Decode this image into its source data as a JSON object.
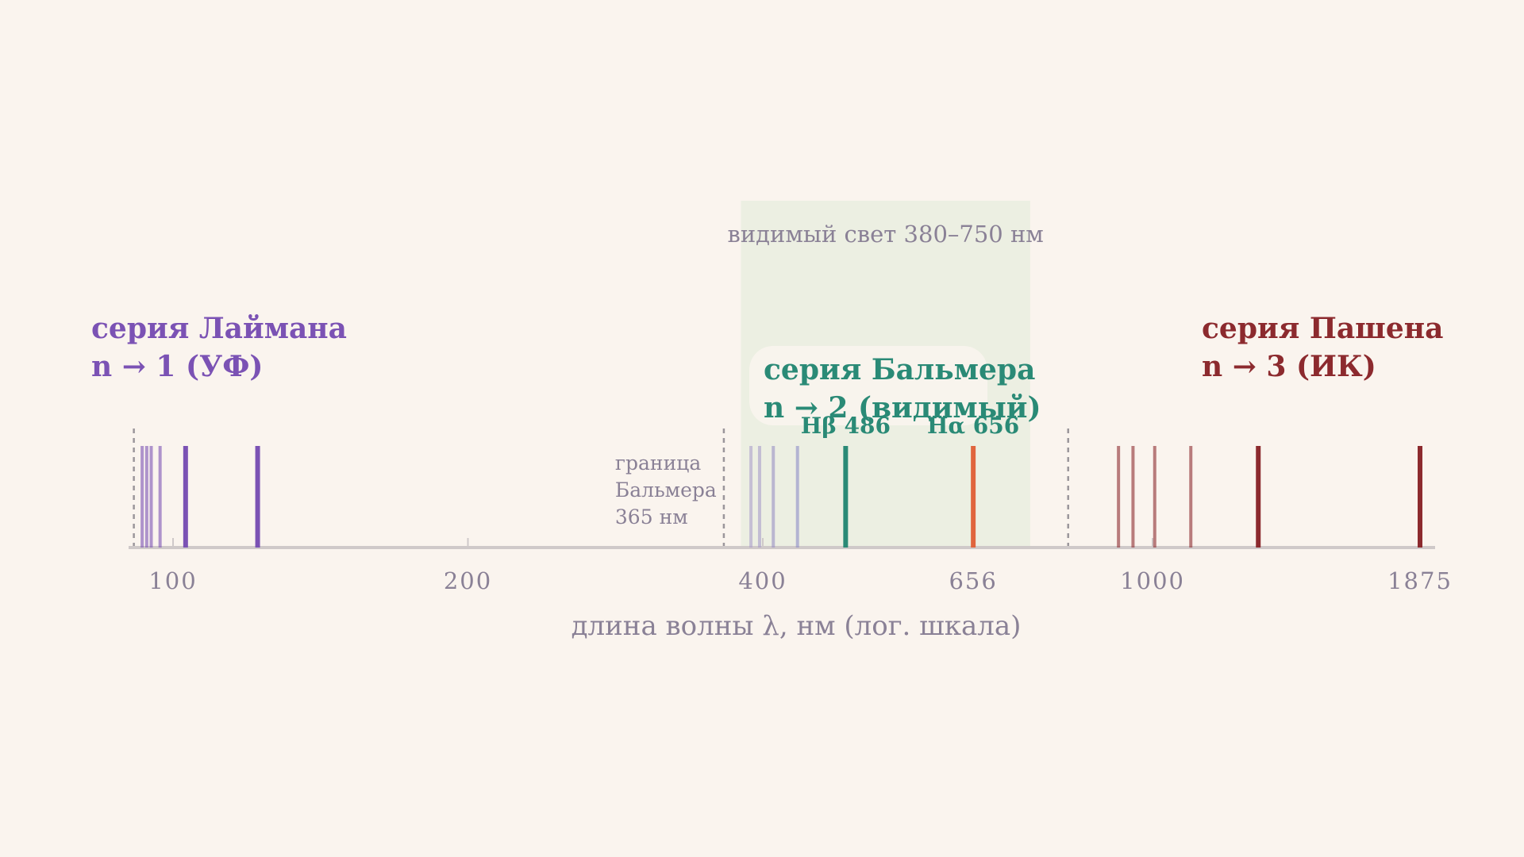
{
  "chart_data": {
    "type": "scatter",
    "x_scale": "log",
    "xlabel": "длина волны λ, нм (лог. шкала)",
    "ylabel": "",
    "xlim": [
      84,
      2000
    ],
    "x_ticks": [
      {
        "value": 100,
        "label": "100"
      },
      {
        "value": 200,
        "label": "200"
      },
      {
        "value": 400,
        "label": "400"
      },
      {
        "value": 656,
        "label": "656"
      },
      {
        "value": 1000,
        "label": "1000"
      },
      {
        "value": 1875,
        "label": "1875"
      }
    ],
    "visible_band": {
      "label": "видимый свет  380–750 нм",
      "from": 380,
      "to": 750
    },
    "series": [
      {
        "name_line1": "серия Лаймана",
        "name_line2": "n → 1 (УФ)",
        "color": "#7b52b4",
        "series_limit": 91.2,
        "lines": [
          {
            "wavelength": 122,
            "strong": true
          },
          {
            "wavelength": 103,
            "strong": true
          },
          {
            "wavelength": 97,
            "strong": false
          },
          {
            "wavelength": 95,
            "strong": false
          },
          {
            "wavelength": 94,
            "strong": false
          },
          {
            "wavelength": 93,
            "strong": false
          }
        ]
      },
      {
        "name_line1": "серия Бальмера",
        "name_line2": "n → 2 (видимый)",
        "color": "#2a8a76",
        "series_limit": 365,
        "limit_label": [
          "граница",
          "Бальмера",
          "365 нм"
        ],
        "lines": [
          {
            "wavelength": 656,
            "label": "Hα 656",
            "color": "#e0653e",
            "strong": true
          },
          {
            "wavelength": 486,
            "label": "Hβ 486",
            "color": "#2a8a76",
            "strong": true
          },
          {
            "wavelength": 434,
            "color": "#8e8cc8",
            "strong": false
          },
          {
            "wavelength": 410,
            "color": "#9a8fc4",
            "strong": false
          },
          {
            "wavelength": 397,
            "color": "#a79bc9",
            "strong": false
          },
          {
            "wavelength": 389,
            "color": "#ab9ecb",
            "strong": false
          }
        ]
      },
      {
        "name_line1": "серия Пашена",
        "name_line2": "n → 3 (ИК)",
        "color": "#8c2a2e",
        "series_limit": 820,
        "lines": [
          {
            "wavelength": 1875,
            "strong": true
          },
          {
            "wavelength": 1282,
            "strong": true
          },
          {
            "wavelength": 1094,
            "strong": false
          },
          {
            "wavelength": 1005,
            "strong": false
          },
          {
            "wavelength": 955,
            "strong": false
          },
          {
            "wavelength": 923,
            "strong": false
          }
        ]
      }
    ],
    "grid": false,
    "legend": "none"
  }
}
